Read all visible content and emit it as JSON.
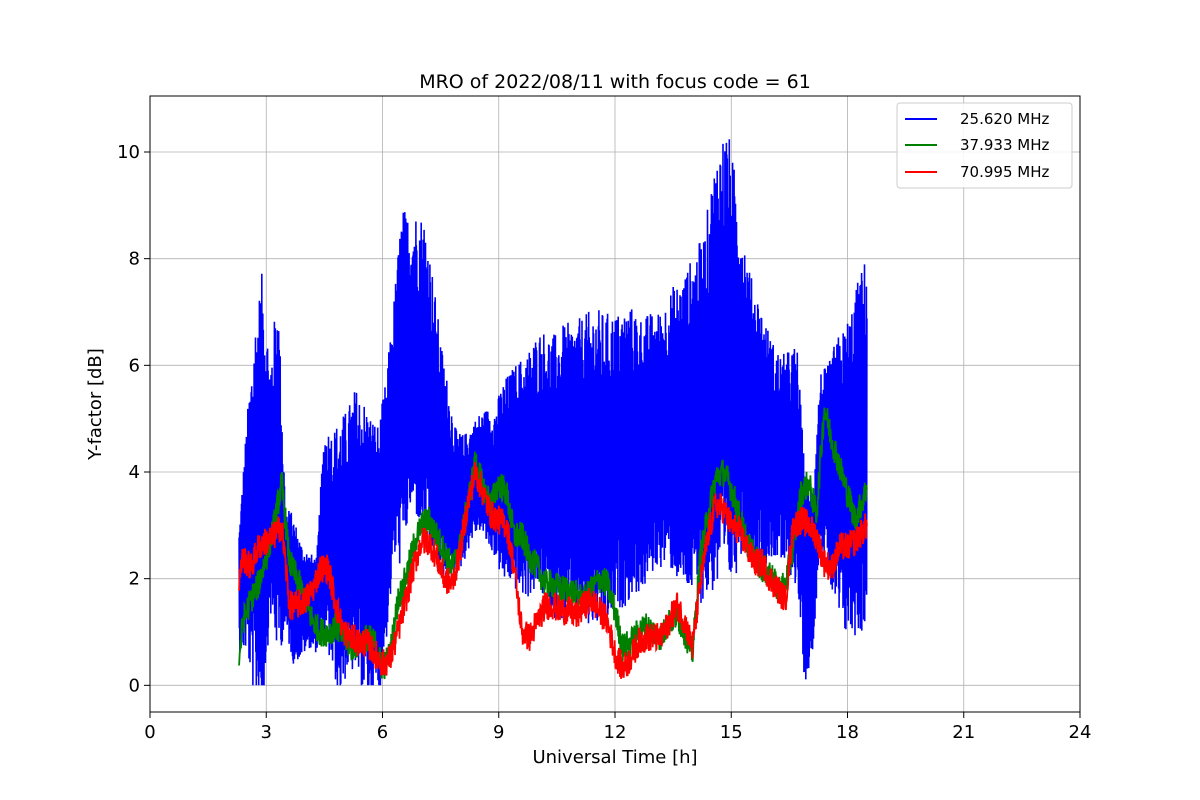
{
  "chart_data": {
    "type": "line",
    "title": "MRO of 2022/08/11 with focus code = 61",
    "xlabel": "Universal Time [h]",
    "ylabel": "Y-factor [dB]",
    "xlim": [
      0,
      24
    ],
    "ylim": [
      -0.5,
      11.05
    ],
    "xticks": [
      0,
      3,
      6,
      9,
      12,
      15,
      18,
      21,
      24
    ],
    "yticks": [
      0,
      2,
      4,
      6,
      8,
      10
    ],
    "grid": true,
    "legend_position": "top-right",
    "series": [
      {
        "name": "25.620 MHz",
        "color": "#0000ff",
        "x": [
          2.3,
          2.5,
          2.7,
          2.9,
          3.1,
          3.3,
          3.5,
          3.7,
          3.9,
          4.1,
          4.3,
          4.5,
          4.7,
          4.9,
          5.1,
          5.3,
          5.5,
          5.7,
          5.9,
          6.1,
          6.3,
          6.5,
          6.7,
          6.9,
          7.1,
          7.3,
          7.5,
          7.7,
          7.9,
          8.1,
          8.3,
          8.5,
          8.7,
          8.9,
          9.1,
          9.3,
          9.5,
          9.7,
          9.9,
          10.1,
          10.3,
          10.5,
          10.7,
          10.9,
          11.1,
          11.3,
          11.5,
          11.7,
          11.9,
          12.1,
          12.3,
          12.5,
          12.7,
          12.9,
          13.1,
          13.3,
          13.5,
          13.7,
          13.9,
          14.1,
          14.3,
          14.5,
          14.7,
          14.9,
          15.1,
          15.3,
          15.5,
          15.7,
          15.9,
          16.1,
          16.3,
          16.5,
          16.7,
          16.9,
          17.1,
          17.3,
          17.5,
          17.7,
          17.9,
          18.1,
          18.3,
          18.5
        ],
        "mid": [
          1.8,
          2.8,
          3.2,
          3.6,
          3.7,
          4.0,
          2.2,
          1.8,
          1.6,
          1.6,
          1.5,
          2.9,
          2.5,
          2.4,
          2.7,
          2.9,
          2.6,
          2.4,
          2.3,
          3.3,
          4.8,
          5.6,
          6.0,
          6.0,
          5.6,
          5.0,
          4.2,
          3.8,
          3.4,
          3.5,
          3.8,
          4.0,
          3.9,
          3.8,
          3.8,
          3.9,
          3.9,
          3.9,
          4.1,
          4.2,
          4.0,
          3.9,
          4.0,
          4.0,
          4.0,
          4.0,
          4.1,
          4.0,
          4.1,
          4.2,
          4.3,
          4.4,
          4.3,
          4.5,
          4.6,
          4.7,
          4.8,
          4.7,
          4.8,
          4.9,
          5.0,
          5.6,
          6.0,
          6.1,
          5.8,
          5.6,
          5.0,
          4.8,
          4.5,
          4.4,
          4.2,
          4.2,
          4.1,
          2.0,
          2.2,
          4.3,
          4.0,
          3.9,
          3.8,
          4.0,
          4.3,
          4.6
        ],
        "amp": [
          1.2,
          2.2,
          3.6,
          4.2,
          2.4,
          3.5,
          1.2,
          1.4,
          1.1,
          0.9,
          0.9,
          2.0,
          2.3,
          2.6,
          2.5,
          2.7,
          2.8,
          2.7,
          2.6,
          2.5,
          2.5,
          3.4,
          2.8,
          2.9,
          3.2,
          2.7,
          2.3,
          1.8,
          1.4,
          1.2,
          1.1,
          1.1,
          1.3,
          1.4,
          1.9,
          2.0,
          2.2,
          2.3,
          2.4,
          2.5,
          2.6,
          2.7,
          2.8,
          2.8,
          2.9,
          3.0,
          3.0,
          3.0,
          2.9,
          2.8,
          2.8,
          2.7,
          2.6,
          2.5,
          2.4,
          2.5,
          2.7,
          2.9,
          3.1,
          3.3,
          3.5,
          3.9,
          4.3,
          4.4,
          3.8,
          3.0,
          2.7,
          2.5,
          2.3,
          2.0,
          2.0,
          2.1,
          2.3,
          2.0,
          1.6,
          1.6,
          2.0,
          2.6,
          2.9,
          3.1,
          3.4,
          3.5
        ]
      },
      {
        "name": "37.933 MHz",
        "color": "#008000",
        "x": [
          2.3,
          2.4,
          2.6,
          2.8,
          3.0,
          3.2,
          3.4,
          3.6,
          3.8,
          4.0,
          4.2,
          4.4,
          4.6,
          4.8,
          5.0,
          5.2,
          5.4,
          5.6,
          5.8,
          6.0,
          6.2,
          6.4,
          6.6,
          6.8,
          7.0,
          7.2,
          7.4,
          7.6,
          7.8,
          8.0,
          8.2,
          8.4,
          8.6,
          8.8,
          9.0,
          9.2,
          9.4,
          9.6,
          9.8,
          10.0,
          10.2,
          10.4,
          10.6,
          10.8,
          11.0,
          11.2,
          11.4,
          11.6,
          11.8,
          12.0,
          12.2,
          12.4,
          12.6,
          12.8,
          13.0,
          13.2,
          13.4,
          13.6,
          13.8,
          14.0,
          14.2,
          14.4,
          14.6,
          14.8,
          15.0,
          15.2,
          15.4,
          15.6,
          15.8,
          16.0,
          16.2,
          16.4,
          16.6,
          16.8,
          17.0,
          17.2,
          17.4,
          17.6,
          17.8,
          18.0,
          18.2,
          18.5
        ],
        "y": [
          0.5,
          1.2,
          1.6,
          1.9,
          2.4,
          3.0,
          3.8,
          2.3,
          2.0,
          1.6,
          1.2,
          1.0,
          1.0,
          1.1,
          0.9,
          0.7,
          0.8,
          0.9,
          0.8,
          0.3,
          0.6,
          1.6,
          2.0,
          2.6,
          3.0,
          3.1,
          2.8,
          2.5,
          2.2,
          2.6,
          3.4,
          4.2,
          3.7,
          3.4,
          3.8,
          3.6,
          2.8,
          2.8,
          2.4,
          2.2,
          1.9,
          1.9,
          1.8,
          1.8,
          1.7,
          1.6,
          1.8,
          2.0,
          1.9,
          1.4,
          0.7,
          0.8,
          1.0,
          1.1,
          1.0,
          0.9,
          1.2,
          1.3,
          1.0,
          0.6,
          2.4,
          3.2,
          3.9,
          4.0,
          3.7,
          3.2,
          2.7,
          2.4,
          2.2,
          2.1,
          1.8,
          1.9,
          2.6,
          3.6,
          3.8,
          3.2,
          5.2,
          4.6,
          4.1,
          3.6,
          3.1,
          3.7
        ]
      },
      {
        "name": "70.995 MHz",
        "color": "#ff0000",
        "x": [
          2.3,
          2.4,
          2.6,
          2.8,
          3.0,
          3.2,
          3.4,
          3.6,
          3.8,
          4.0,
          4.2,
          4.4,
          4.6,
          4.8,
          5.0,
          5.2,
          5.4,
          5.6,
          5.8,
          6.0,
          6.2,
          6.4,
          6.6,
          6.8,
          7.0,
          7.2,
          7.4,
          7.6,
          7.8,
          8.0,
          8.2,
          8.4,
          8.6,
          8.8,
          9.0,
          9.2,
          9.4,
          9.6,
          9.8,
          10.0,
          10.2,
          10.4,
          10.6,
          10.8,
          11.0,
          11.2,
          11.4,
          11.6,
          11.8,
          12.0,
          12.2,
          12.4,
          12.6,
          12.8,
          13.0,
          13.2,
          13.4,
          13.6,
          13.8,
          14.0,
          14.2,
          14.4,
          14.6,
          14.8,
          15.0,
          15.2,
          15.4,
          15.6,
          15.8,
          16.0,
          16.2,
          16.4,
          16.6,
          16.8,
          17.0,
          17.2,
          17.4,
          17.6,
          17.8,
          18.0,
          18.2,
          18.5
        ],
        "y": [
          2.0,
          2.4,
          2.2,
          2.6,
          2.7,
          2.8,
          3.0,
          1.5,
          1.5,
          1.6,
          1.8,
          2.2,
          2.2,
          1.5,
          1.0,
          0.9,
          0.8,
          0.8,
          0.6,
          0.4,
          0.5,
          1.0,
          1.6,
          2.2,
          2.7,
          2.7,
          2.4,
          2.0,
          1.9,
          2.5,
          3.4,
          4.0,
          3.6,
          3.2,
          3.1,
          3.0,
          2.2,
          1.0,
          0.9,
          1.2,
          1.5,
          1.5,
          1.4,
          1.4,
          1.3,
          1.5,
          1.6,
          1.4,
          1.2,
          0.6,
          0.3,
          0.5,
          0.8,
          0.9,
          0.9,
          0.9,
          1.2,
          1.5,
          1.2,
          0.7,
          1.9,
          2.8,
          3.4,
          3.3,
          3.0,
          2.9,
          2.6,
          2.3,
          2.3,
          2.0,
          1.8,
          1.6,
          3.0,
          3.1,
          3.0,
          2.8,
          2.3,
          2.2,
          2.6,
          2.6,
          2.7,
          3.0
        ]
      }
    ]
  }
}
